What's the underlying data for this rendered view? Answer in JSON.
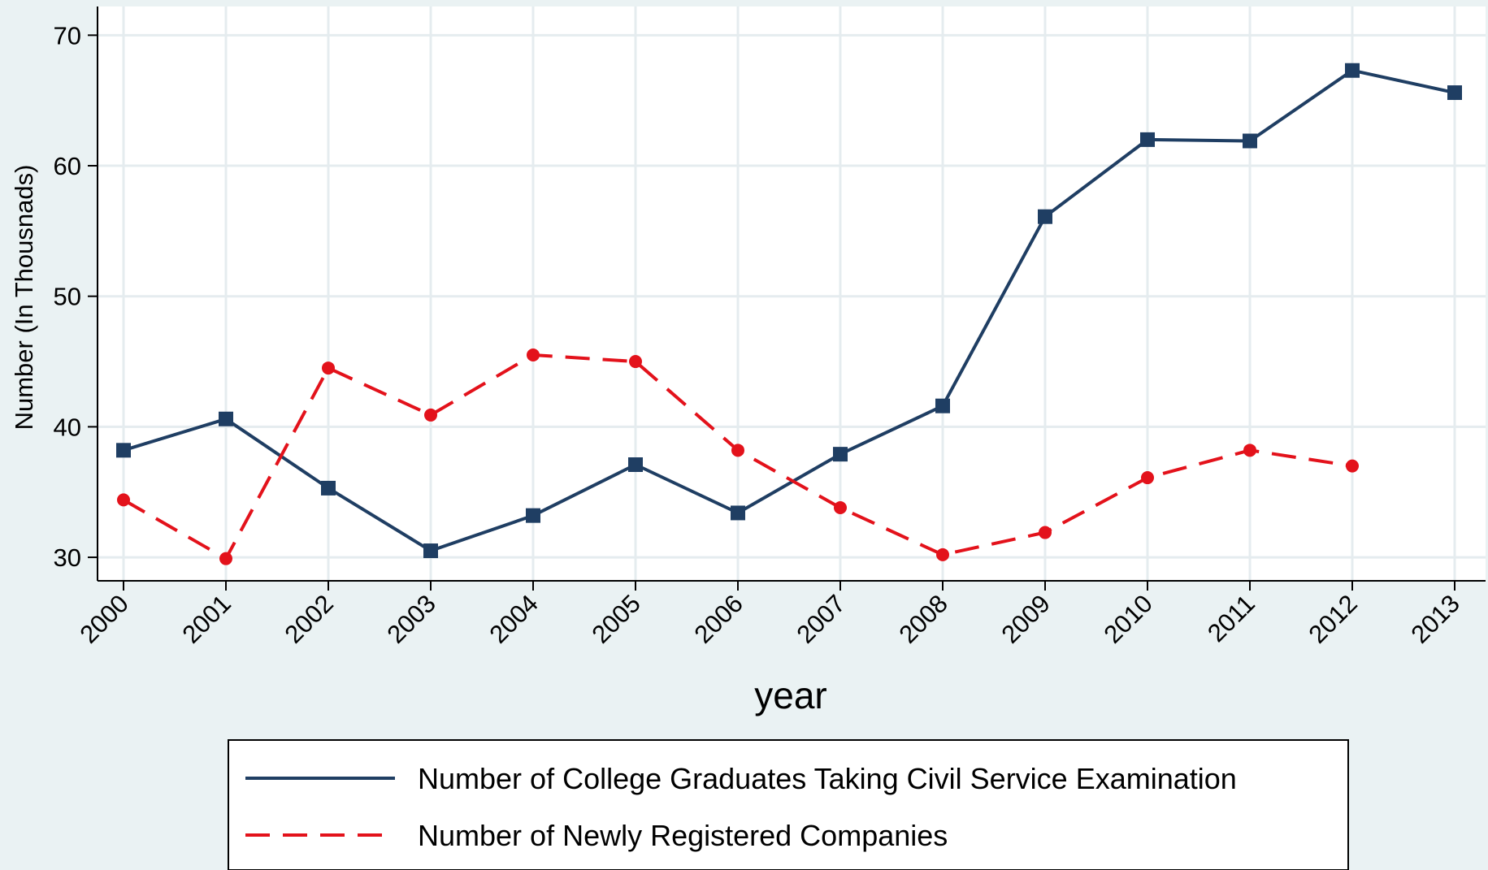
{
  "chart_data": {
    "type": "line",
    "xlabel": "year",
    "ylabel": "Number (In Thousnads)",
    "ylim": [
      28.2,
      72.2
    ],
    "yticks": [
      30,
      40,
      50,
      60,
      70
    ],
    "grid": true,
    "legend_position": "bottom",
    "categories": [
      "2000",
      "2001",
      "2002",
      "2003",
      "2004",
      "2005",
      "2006",
      "2007",
      "2008",
      "2009",
      "2010",
      "2011",
      "2012",
      "2013"
    ],
    "series": [
      {
        "name": "Number of College Graduates Taking Civil Service Examination",
        "color": "#1f3e63",
        "marker": "square",
        "line_style": "solid",
        "values": [
          38.2,
          40.6,
          35.3,
          30.5,
          33.2,
          37.1,
          33.4,
          37.9,
          41.6,
          56.1,
          62.0,
          61.9,
          67.3,
          65.6
        ]
      },
      {
        "name": "Number of Newly Registered Companies",
        "color": "#e3121b",
        "marker": "circle",
        "line_style": "dashed",
        "values": [
          34.4,
          29.9,
          44.5,
          40.9,
          45.5,
          45.0,
          38.2,
          33.8,
          30.2,
          31.9,
          36.1,
          38.2,
          37.0,
          null
        ]
      }
    ]
  }
}
